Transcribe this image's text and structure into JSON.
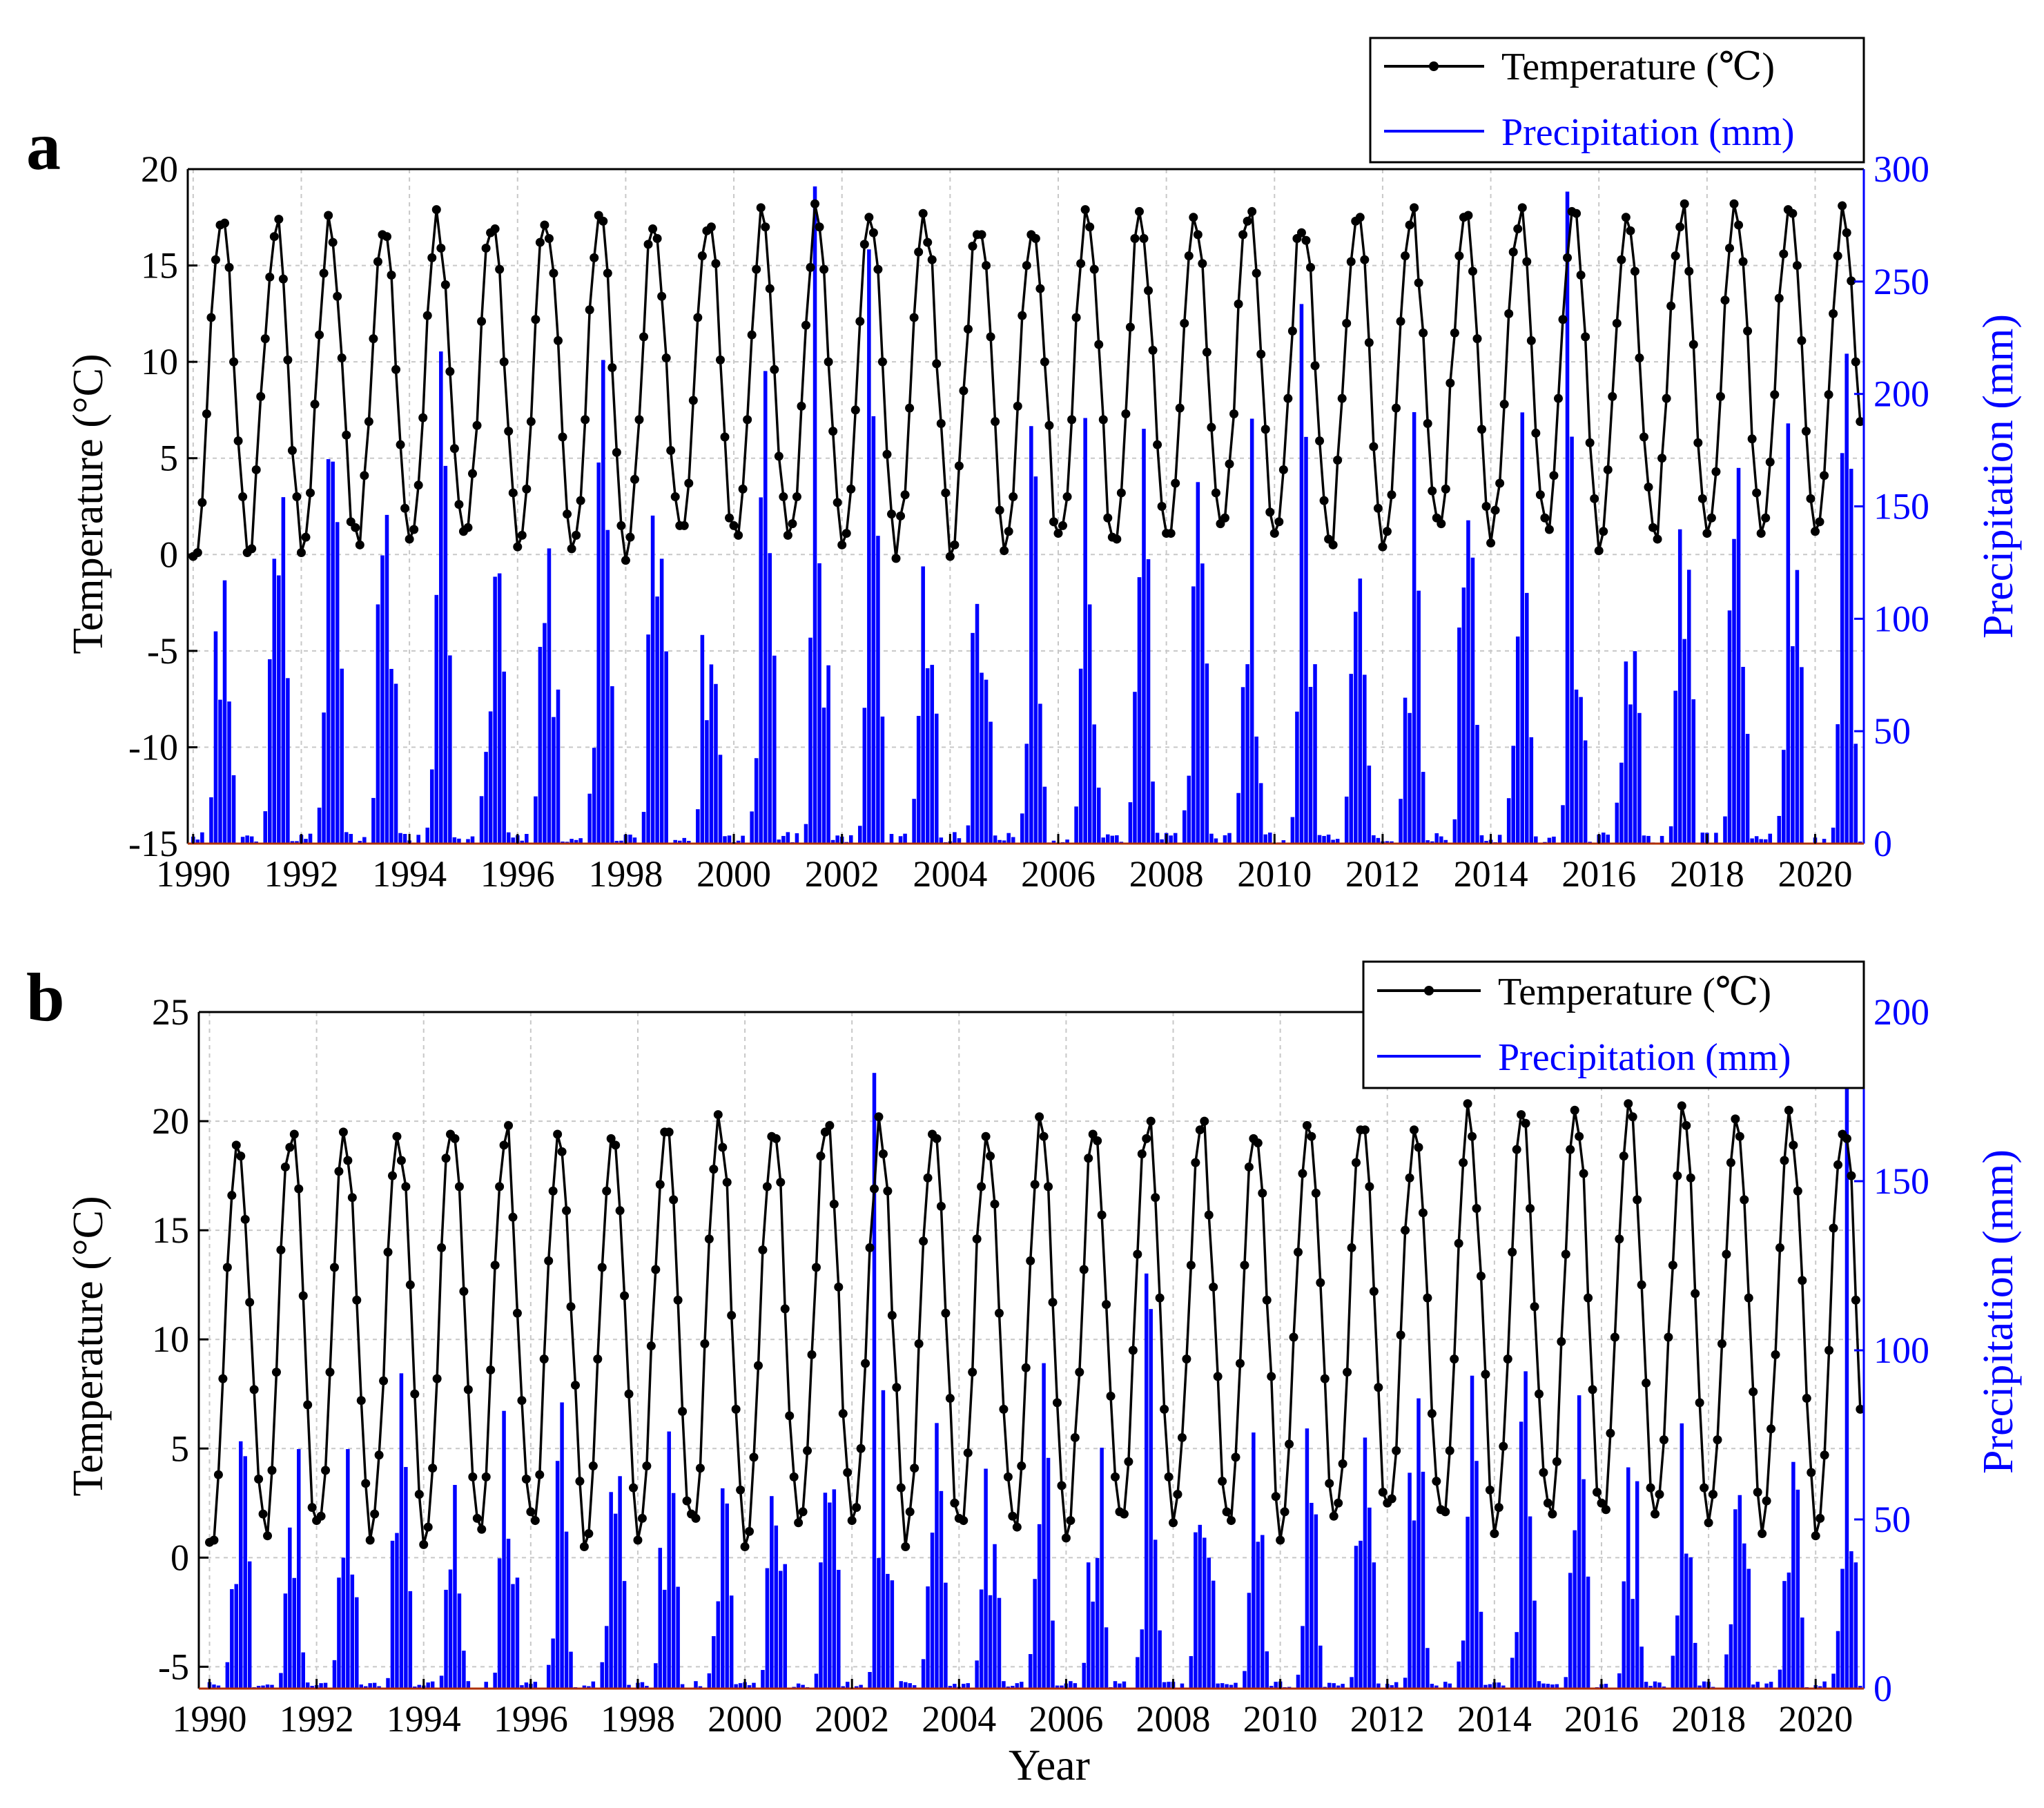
{
  "colors": {
    "temperature": "#000000",
    "precipitation": "#0000ff",
    "grid": "#c8c8c8",
    "zero_line": "#b03000"
  },
  "chart_data": [
    {
      "panel_label": "a",
      "type": "line+bar",
      "ylabel_left": "Temperature  (°C)",
      "ylabel_right": "Precipitation (mm)",
      "xlabel": "",
      "ylim_temperature": [
        -15,
        20
      ],
      "ylim_precipitation": [
        0,
        300
      ],
      "temp_ticks": [
        -15,
        -10,
        -5,
        0,
        5,
        10,
        15,
        20
      ],
      "precip_ticks": [
        0,
        50,
        100,
        150,
        200,
        250,
        300
      ],
      "x_range": [
        1989.9,
        2020.9
      ],
      "x_ticks": [
        "1990",
        "1992",
        "1994",
        "1996",
        "1998",
        "2000",
        "2002",
        "2004",
        "2006",
        "2008",
        "2010",
        "2012",
        "2014",
        "2016",
        "2018",
        "2020"
      ],
      "legend": {
        "position": "top-right",
        "temperature_label": "Temperature (℃)",
        "precipitation_label": "Precipitation (mm)"
      },
      "series": [
        {
          "name": "Temperature (℃)",
          "unit": "°C",
          "style": "line-with-dots",
          "start": "1990-01",
          "month_step": 1,
          "winter_min": 0.3,
          "summer_max": 17.2,
          "values": []
        },
        {
          "name": "Precipitation (mm)",
          "unit": "mm",
          "style": "bars",
          "start": "1990-01",
          "month_step": 1,
          "values": []
        }
      ]
    },
    {
      "panel_label": "b",
      "type": "line+bar",
      "ylabel_left": "Temperature  (°C)",
      "ylabel_right": "Precipitation (mm)",
      "xlabel": "Year",
      "ylim_temperature": [
        -6,
        25
      ],
      "ylim_precipitation": [
        0,
        200
      ],
      "temp_ticks": [
        -5,
        0,
        5,
        10,
        15,
        20,
        25
      ],
      "precip_ticks": [
        0,
        50,
        100,
        150,
        200
      ],
      "x_range": [
        1989.8,
        2020.9
      ],
      "x_ticks": [
        "1990",
        "1992",
        "1994",
        "1996",
        "1998",
        "2000",
        "2002",
        "2004",
        "2006",
        "2008",
        "2010",
        "2012",
        "2014",
        "2016",
        "2018",
        "2020"
      ],
      "legend": {
        "position": "top-right",
        "temperature_label": "Temperature (℃)",
        "precipitation_label": "Precipitation (mm)"
      },
      "series": [
        {
          "name": "Temperature (℃)",
          "unit": "°C",
          "style": "line-with-dots",
          "start": "1990-01",
          "month_step": 1,
          "winter_min": 1.0,
          "summer_max": 19.5,
          "values": []
        },
        {
          "name": "Precipitation (mm)",
          "unit": "mm",
          "style": "bars",
          "start": "1990-01",
          "month_step": 1,
          "values": []
        }
      ]
    }
  ]
}
